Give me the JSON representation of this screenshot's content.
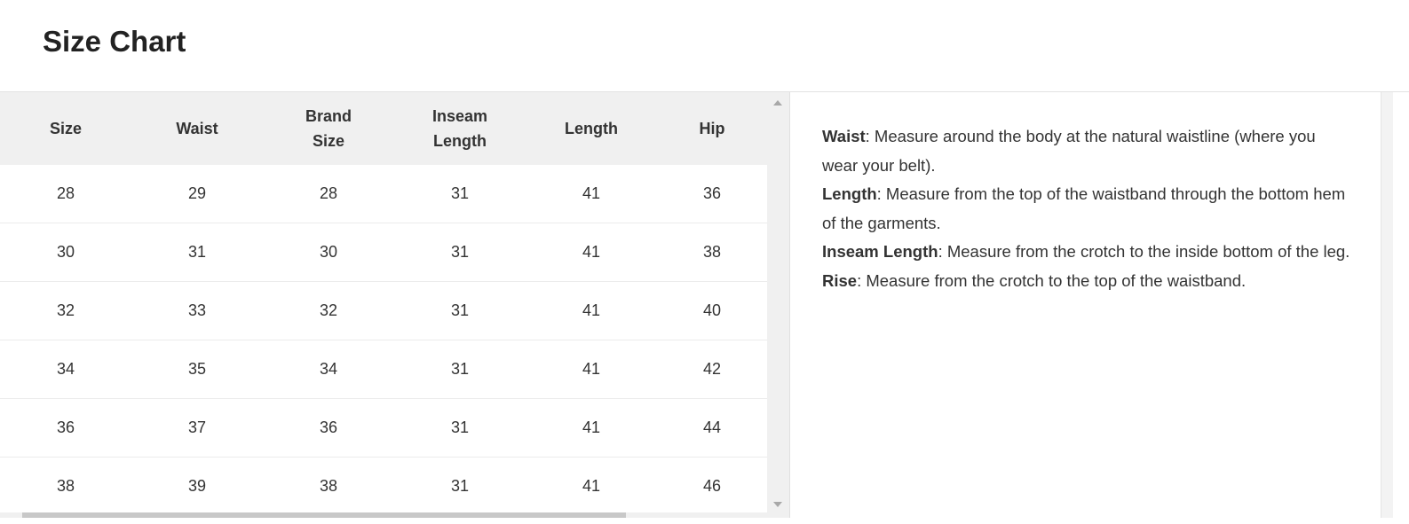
{
  "title": "Size Chart",
  "table": {
    "headers": [
      "Size",
      "Waist",
      "Brand Size",
      "Inseam Length",
      "Length",
      "Hip"
    ],
    "rows": [
      [
        "28",
        "29",
        "28",
        "31",
        "41",
        "36"
      ],
      [
        "30",
        "31",
        "30",
        "31",
        "41",
        "38"
      ],
      [
        "32",
        "33",
        "32",
        "31",
        "41",
        "40"
      ],
      [
        "34",
        "35",
        "34",
        "31",
        "41",
        "42"
      ],
      [
        "36",
        "37",
        "36",
        "31",
        "41",
        "44"
      ],
      [
        "38",
        "39",
        "38",
        "31",
        "41",
        "46"
      ]
    ]
  },
  "notes": [
    {
      "term": "Waist",
      "text": ": Measure around the body at the natural waistline (where you wear your belt)."
    },
    {
      "term": "Length",
      "text": ": Measure from the top of the waistband through the bottom hem of the garments."
    },
    {
      "term": "Inseam Length",
      "text": ": Measure from the crotch to the inside bottom of the leg."
    },
    {
      "term": "Rise",
      "text": ": Measure from the crotch to the top of the waistband."
    }
  ]
}
